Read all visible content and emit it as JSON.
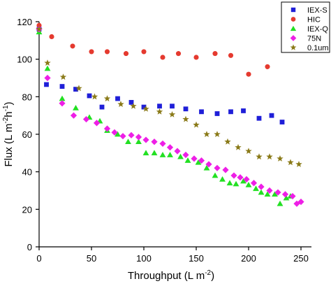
{
  "chart_data": {
    "type": "scatter",
    "xlabel": {
      "main": "Throughput (L m",
      "sup1": "-2",
      "post": ")"
    },
    "ylabel": {
      "main": "Flux (L m",
      "sup1": "-2",
      "mid": "h",
      "sup2": "-1",
      "post": ")"
    },
    "xlim": [
      0,
      260
    ],
    "ylim": [
      0,
      120
    ],
    "xticks": [
      0,
      50,
      100,
      150,
      200,
      250
    ],
    "yticks": [
      0,
      20,
      40,
      60,
      80,
      100,
      120
    ],
    "grid": false,
    "legend_position": "top-right",
    "series": [
      {
        "name": "IEX-S",
        "marker": "square",
        "color": "#1f1fd8",
        "points": [
          [
            0,
            116
          ],
          [
            7,
            86.5
          ],
          [
            22,
            85.5
          ],
          [
            35,
            84
          ],
          [
            48,
            80.5
          ],
          [
            60,
            74.5
          ],
          [
            75,
            79
          ],
          [
            88,
            77
          ],
          [
            100,
            74.5
          ],
          [
            115,
            75
          ],
          [
            127,
            75
          ],
          [
            140,
            73.5
          ],
          [
            155,
            72
          ],
          [
            170,
            71
          ],
          [
            183,
            72
          ],
          [
            195,
            72.5
          ],
          [
            210,
            68.5
          ],
          [
            222,
            70
          ],
          [
            232,
            66.5
          ]
        ]
      },
      {
        "name": "HIC",
        "marker": "circle",
        "color": "#e53a2f",
        "points": [
          [
            0,
            118
          ],
          [
            12,
            112
          ],
          [
            32,
            107
          ],
          [
            50,
            104
          ],
          [
            65,
            104
          ],
          [
            83,
            103
          ],
          [
            100,
            104
          ],
          [
            118,
            101
          ],
          [
            133,
            103
          ],
          [
            150,
            101
          ],
          [
            168,
            103
          ],
          [
            183,
            102
          ],
          [
            200,
            92
          ],
          [
            218,
            96
          ]
        ]
      },
      {
        "name": "IEX-Q",
        "marker": "triangle",
        "color": "#22e022",
        "points": [
          [
            0,
            114.5
          ],
          [
            8,
            95
          ],
          [
            22,
            79
          ],
          [
            35,
            74
          ],
          [
            48,
            69
          ],
          [
            58,
            67
          ],
          [
            65,
            62
          ],
          [
            75,
            60
          ],
          [
            85,
            56
          ],
          [
            95,
            56
          ],
          [
            102,
            50
          ],
          [
            110,
            50
          ],
          [
            118,
            49
          ],
          [
            125,
            49
          ],
          [
            135,
            48
          ],
          [
            142,
            46
          ],
          [
            152,
            45
          ],
          [
            160,
            42
          ],
          [
            168,
            38
          ],
          [
            175,
            36
          ],
          [
            182,
            34
          ],
          [
            188,
            33.5
          ],
          [
            195,
            35
          ],
          [
            200,
            33
          ],
          [
            207,
            31
          ],
          [
            212,
            29
          ],
          [
            218,
            28
          ],
          [
            225,
            28
          ],
          [
            230,
            23
          ],
          [
            236,
            26
          ],
          [
            240,
            27
          ]
        ]
      },
      {
        "name": "75N",
        "marker": "diamond",
        "color": "#ee1fe6",
        "points": [
          [
            0,
            116
          ],
          [
            8,
            90
          ],
          [
            22,
            76.5
          ],
          [
            33,
            70
          ],
          [
            45,
            68
          ],
          [
            55,
            66
          ],
          [
            65,
            63
          ],
          [
            72,
            61
          ],
          [
            80,
            59
          ],
          [
            88,
            59.5
          ],
          [
            95,
            58.5
          ],
          [
            102,
            57
          ],
          [
            110,
            56
          ],
          [
            118,
            55
          ],
          [
            125,
            53
          ],
          [
            132,
            51
          ],
          [
            140,
            49
          ],
          [
            148,
            47
          ],
          [
            155,
            46
          ],
          [
            162,
            44
          ],
          [
            170,
            42
          ],
          [
            178,
            41
          ],
          [
            186,
            38
          ],
          [
            192,
            37
          ],
          [
            198,
            36
          ],
          [
            205,
            34
          ],
          [
            212,
            32
          ],
          [
            220,
            30
          ],
          [
            228,
            29
          ],
          [
            235,
            28
          ],
          [
            242,
            27
          ],
          [
            246,
            23
          ],
          [
            250,
            24
          ]
        ]
      },
      {
        "name": "0.1um",
        "marker": "star",
        "color": "#8a7a18",
        "points": [
          [
            0,
            116
          ],
          [
            8,
            98
          ],
          [
            23,
            90.5
          ],
          [
            38,
            84.5
          ],
          [
            53,
            80
          ],
          [
            65,
            79
          ],
          [
            78,
            76
          ],
          [
            90,
            75
          ],
          [
            102,
            73.5
          ],
          [
            115,
            72
          ],
          [
            127,
            70.5
          ],
          [
            140,
            68
          ],
          [
            150,
            65
          ],
          [
            160,
            60
          ],
          [
            170,
            60
          ],
          [
            180,
            56
          ],
          [
            190,
            53
          ],
          [
            200,
            51
          ],
          [
            210,
            48
          ],
          [
            220,
            48
          ],
          [
            230,
            47
          ],
          [
            240,
            45
          ],
          [
            248,
            44
          ]
        ]
      }
    ]
  }
}
